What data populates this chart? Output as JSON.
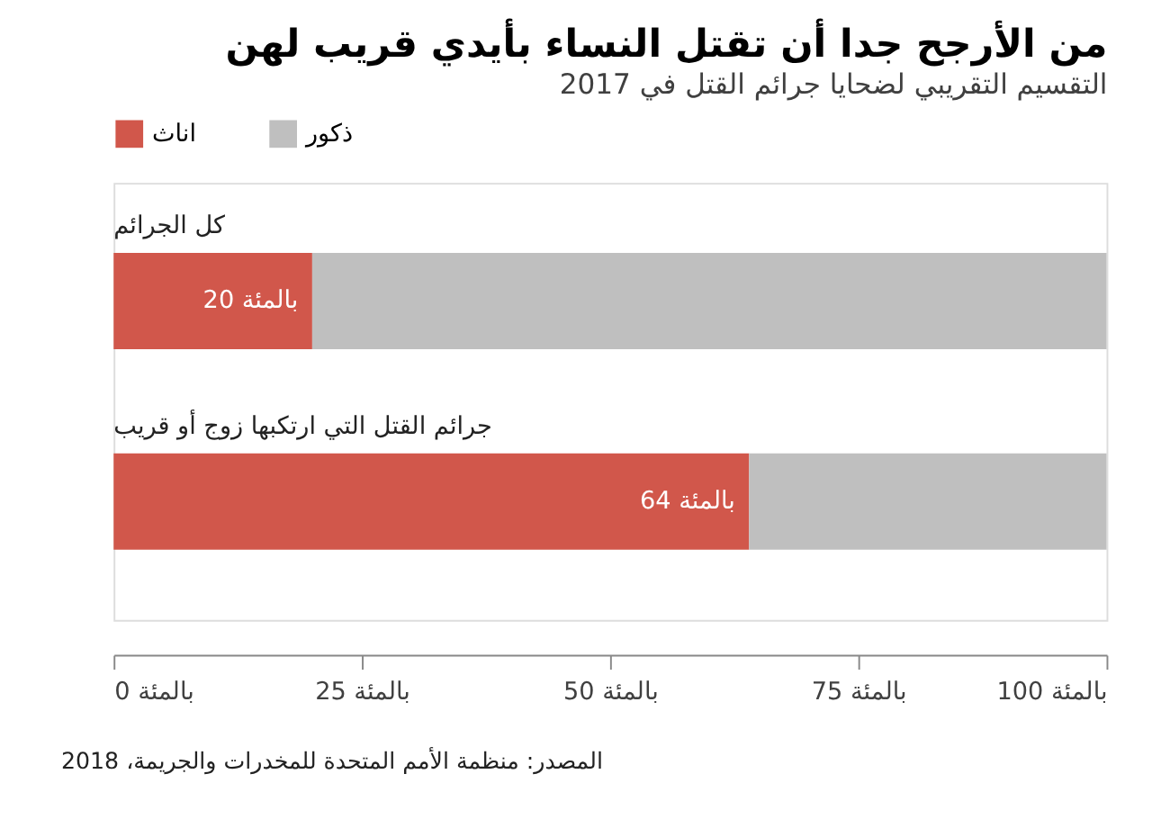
{
  "chart_data": {
    "type": "bar",
    "title": "من الأرجح جدا أن تقتل النساء بأيدي قريب لهن",
    "subtitle": "التقسيم التقريبي لضحايا جرائم القتل في 2017",
    "orientation": "horizontal",
    "stacked": true,
    "categories": [
      "كل الجرائم",
      "جرائم القتل التي ارتكبها زوج أو قريب"
    ],
    "series": [
      {
        "name": "اناث",
        "color": "#d1574b",
        "values": [
          20,
          64
        ],
        "value_labels": [
          "20 بالمئة",
          "64 بالمئة"
        ]
      },
      {
        "name": "ذكور",
        "color": "#bfbfbf",
        "values": [
          80,
          36
        ]
      }
    ],
    "xlim": [
      0,
      100
    ],
    "xticks": [
      {
        "value": 0,
        "label": "0 بالمئة"
      },
      {
        "value": 25,
        "label": "25 بالمئة"
      },
      {
        "value": 50,
        "label": "50 بالمئة"
      },
      {
        "value": 75,
        "label": "75 بالمئة"
      },
      {
        "value": 100,
        "label": "100 بالمئة"
      }
    ],
    "grid": false,
    "legend": "top left",
    "annotations": [
      "المصدر: منظمة الأمم المتحدة للمخدرات والجريمة، 2018"
    ]
  }
}
